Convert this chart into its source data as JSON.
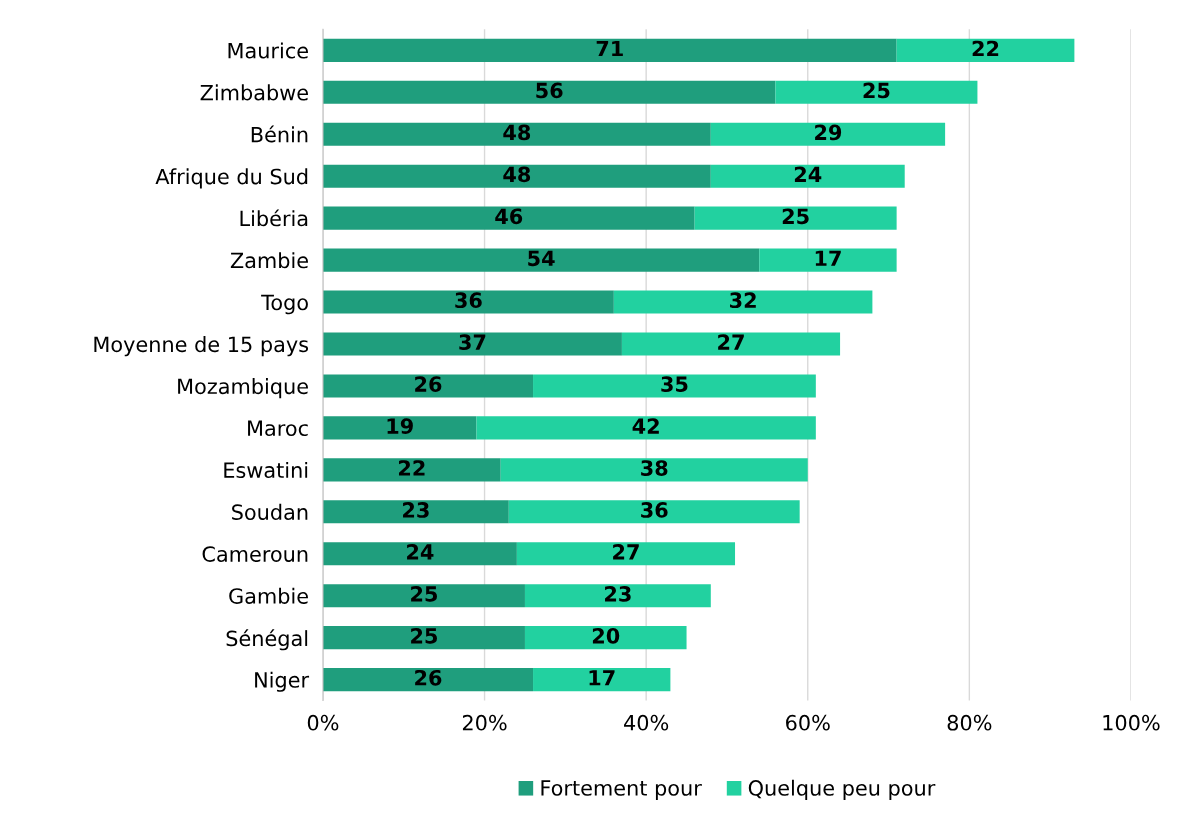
{
  "chart_data": {
    "type": "bar",
    "orientation": "horizontal",
    "stacked": true,
    "categories": [
      "Maurice",
      "Zimbabwe",
      "Bénin",
      "Afrique du Sud",
      "Libéria",
      "Zambie",
      "Togo",
      "Moyenne de 15 pays",
      "Mozambique",
      "Maroc",
      "Eswatini",
      "Soudan",
      "Cameroun",
      "Gambie",
      "Sénégal",
      "Niger"
    ],
    "series": [
      {
        "name": "Fortement pour",
        "color": "#1f9e7d",
        "values": [
          71,
          56,
          48,
          48,
          46,
          54,
          36,
          37,
          26,
          19,
          22,
          23,
          24,
          25,
          25,
          26
        ]
      },
      {
        "name": "Quelque peu pour",
        "color": "#22d1a0",
        "values": [
          22,
          25,
          29,
          24,
          25,
          17,
          32,
          27,
          35,
          42,
          38,
          36,
          27,
          23,
          20,
          17
        ]
      }
    ],
    "xlim": [
      0,
      100
    ],
    "xticks": [
      {
        "value": 0,
        "label": "0%"
      },
      {
        "value": 20,
        "label": "20%"
      },
      {
        "value": 40,
        "label": "40%"
      },
      {
        "value": 60,
        "label": "60%"
      },
      {
        "value": 80,
        "label": "80%"
      },
      {
        "value": 100,
        "label": "100%"
      }
    ],
    "data_labels": true,
    "grid": "x",
    "legend": "bottom"
  }
}
